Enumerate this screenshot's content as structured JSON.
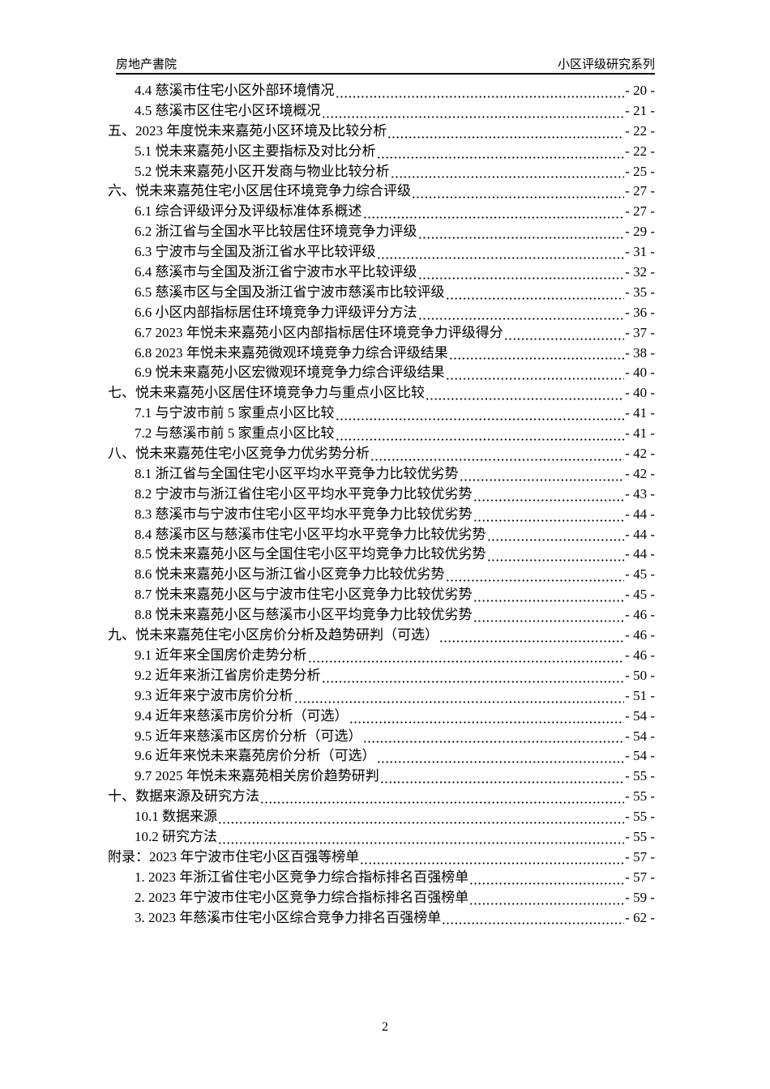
{
  "header": {
    "left": "房地产書院",
    "right": "小区评级研究系列"
  },
  "toc": {
    "entries": [
      {
        "level": 2,
        "title": "4.4 慈溪市住宅小区外部环境情况",
        "page": "- 20 -"
      },
      {
        "level": 2,
        "title": "4.5 慈溪市区住宅小区环境概况",
        "page": "- 21 -"
      },
      {
        "level": 1,
        "title": "五、2023 年度悦未来嘉苑小区环境及比较分析",
        "page": "- 22 -"
      },
      {
        "level": 2,
        "title": "5.1 悦未来嘉苑小区主要指标及对比分析",
        "page": "- 22 -"
      },
      {
        "level": 2,
        "title": "5.2 悦未来嘉苑小区开发商与物业比较分析",
        "page": "- 25 -"
      },
      {
        "level": 1,
        "title": "六、悦未来嘉苑住宅小区居住环境竞争力综合评级",
        "page": "- 27 -"
      },
      {
        "level": 2,
        "title": "6.1 综合评级评分及评级标准体系概述",
        "page": "- 27 -"
      },
      {
        "level": 2,
        "title": "6.2 浙江省与全国水平比较居住环境竞争力评级",
        "page": "- 29 -"
      },
      {
        "level": 2,
        "title": "6.3 宁波市与全国及浙江省水平比较评级",
        "page": "- 31 -"
      },
      {
        "level": 2,
        "title": "6.4 慈溪市与全国及浙江省宁波市水平比较评级",
        "page": "- 32 -"
      },
      {
        "level": 2,
        "title": "6.5 慈溪市区与全国及浙江省宁波市慈溪市比较评级",
        "page": "- 35 -"
      },
      {
        "level": 2,
        "title": "6.6 小区内部指标居住环境竞争力评级评分方法",
        "page": "- 36 -"
      },
      {
        "level": 2,
        "title": "6.7 2023 年悦未来嘉苑小区内部指标居住环境竞争力评级得分",
        "page": "- 37 -"
      },
      {
        "level": 2,
        "title": "6.8 2023 年悦未来嘉苑微观环境竞争力综合评级结果",
        "page": "- 38 -"
      },
      {
        "level": 2,
        "title": "6.9 悦未来嘉苑小区宏微观环境竞争力综合评级结果",
        "page": "- 40 -"
      },
      {
        "level": 1,
        "title": "七、悦未来嘉苑小区居住环境竞争力与重点小区比较",
        "page": "- 40 -"
      },
      {
        "level": 2,
        "title": "7.1 与宁波市前 5 家重点小区比较",
        "page": "- 41 -"
      },
      {
        "level": 2,
        "title": "7.2 与慈溪市前 5 家重点小区比较",
        "page": "- 41 -"
      },
      {
        "level": 1,
        "title": "八、悦未来嘉苑住宅小区竞争力优劣势分析",
        "page": "- 42 -"
      },
      {
        "level": 2,
        "title": "8.1 浙江省与全国住宅小区平均水平竞争力比较优劣势",
        "page": "- 42 -"
      },
      {
        "level": 2,
        "title": "8.2 宁波市与浙江省住宅小区平均水平竞争力比较优劣势",
        "page": "- 43 -"
      },
      {
        "level": 2,
        "title": "8.3 慈溪市与宁波市住宅小区平均水平竞争力比较优劣势",
        "page": "- 44 -"
      },
      {
        "level": 2,
        "title": "8.4 慈溪市区与慈溪市住宅小区平均水平竞争力比较优劣势",
        "page": "- 44 -"
      },
      {
        "level": 2,
        "title": "8.5 悦未来嘉苑小区与全国住宅小区平均竞争力比较优劣势",
        "page": "- 44 -"
      },
      {
        "level": 2,
        "title": "8.6 悦未来嘉苑小区与浙江省小区竞争力比较优劣势",
        "page": "- 45 -"
      },
      {
        "level": 2,
        "title": "8.7 悦未来嘉苑小区与宁波市住宅小区竞争力比较优劣势",
        "page": "- 45 -"
      },
      {
        "level": 2,
        "title": "8.8 悦未来嘉苑小区与慈溪市小区平均竞争力比较优劣势",
        "page": "- 46 -"
      },
      {
        "level": 1,
        "title": "九、悦未来嘉苑住宅小区房价分析及趋势研判（可选）",
        "page": "- 46 -"
      },
      {
        "level": 2,
        "title": "9.1 近年来全国房价走势分析",
        "page": "- 46 -"
      },
      {
        "level": 2,
        "title": "9.2 近年来浙江省房价走势分析",
        "page": "- 50 -"
      },
      {
        "level": 2,
        "title": "9.3 近年来宁波市房价分析",
        "page": "- 51 -"
      },
      {
        "level": 2,
        "title": "9.4 近年来慈溪市房价分析（可选）",
        "page": "- 54 -"
      },
      {
        "level": 2,
        "title": "9.5 近年来慈溪市区房价分析（可选）",
        "page": "- 54 -"
      },
      {
        "level": 2,
        "title": "9.6 近年来悦未来嘉苑房价分析（可选）",
        "page": "- 54 -"
      },
      {
        "level": 2,
        "title": "9.7 2025 年悦未来嘉苑相关房价趋势研判",
        "page": "- 55 -"
      },
      {
        "level": 1,
        "title": "十、数据来源及研究方法",
        "page": "- 55 -"
      },
      {
        "level": 2,
        "title": "10.1 数据来源",
        "page": "- 55 -"
      },
      {
        "level": 2,
        "title": "10.2 研究方法",
        "page": "- 55 -"
      },
      {
        "level": 1,
        "title": "附录：2023 年宁波市住宅小区百强等榜单",
        "page": "- 57 -"
      },
      {
        "level": 2,
        "title": "1.  2023 年浙江省住宅小区竞争力综合指标排名百强榜单",
        "page": "- 57 -"
      },
      {
        "level": 2,
        "title": "2.  2023 年宁波市住宅小区竞争力综合指标排名百强榜单",
        "page": "- 59 -"
      },
      {
        "level": 2,
        "title": "3.  2023 年慈溪市住宅小区综合竞争力排名百强榜单",
        "page": "- 62 -"
      }
    ]
  },
  "footer": {
    "page_number": "2"
  }
}
